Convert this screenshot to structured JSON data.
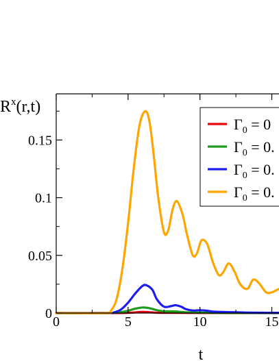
{
  "chart_data": {
    "type": "line",
    "ylabel_main": "R",
    "ylabel_sup": "x",
    "ylabel_rest": "(r,t)",
    "xlabel": "t",
    "xlim": [
      0,
      15.5
    ],
    "ylim": [
      0,
      0.19
    ],
    "xticks": [
      0,
      5,
      10,
      15
    ],
    "xtick_labels": [
      "0",
      "5",
      "10",
      "15"
    ],
    "yticks": [
      0,
      0.05,
      0.1,
      0.15
    ],
    "ytick_labels": [
      "0",
      "0.05",
      "0.1",
      "0.15"
    ],
    "legend_position": "top-right",
    "series": [
      {
        "name": "Γ0 = 0",
        "legend_symbol": "Γ",
        "legend_sub": "0",
        "legend_rest": " = 0",
        "color": "#e8000b",
        "x": [
          0,
          3,
          4,
          5,
          5.5,
          6,
          6.5,
          7,
          8,
          10,
          12,
          15.5
        ],
        "y": [
          0,
          0,
          0,
          0.0002,
          0.0006,
          0.001,
          0.0007,
          0.0003,
          0.0002,
          0.0001,
          0,
          0
        ]
      },
      {
        "name": "Γ0 = 0.",
        "legend_symbol": "Γ",
        "legend_sub": "0",
        "legend_rest": " = 0.",
        "color": "#1e9b1e",
        "x": [
          0,
          3.5,
          4.5,
          5,
          5.5,
          6,
          6.5,
          7,
          7.5,
          8,
          8.5,
          9,
          10,
          11,
          12,
          15.5
        ],
        "y": [
          0,
          0,
          0.0008,
          0.002,
          0.0038,
          0.0048,
          0.0042,
          0.0025,
          0.0015,
          0.0015,
          0.0012,
          0.0007,
          0.0004,
          0.0002,
          0.0001,
          0
        ]
      },
      {
        "name": "Γ0 = 0.",
        "legend_symbol": "Γ",
        "legend_sub": "0",
        "legend_rest": " = 0.",
        "color": "#1c1cf0",
        "x": [
          0,
          3.5,
          4,
          4.5,
          5,
          5.5,
          6,
          6.3,
          6.7,
          7,
          7.5,
          8,
          8.3,
          8.7,
          9,
          9.5,
          10,
          10.5,
          11,
          12,
          13,
          14,
          15.5
        ],
        "y": [
          0,
          0,
          0.0005,
          0.003,
          0.009,
          0.017,
          0.0235,
          0.024,
          0.02,
          0.012,
          0.0055,
          0.006,
          0.0068,
          0.0055,
          0.0035,
          0.0022,
          0.0025,
          0.002,
          0.0012,
          0.0008,
          0.0005,
          0.0003,
          0.0002
        ]
      },
      {
        "name": "Γ0 = 0.",
        "legend_symbol": "Γ",
        "legend_sub": "0",
        "legend_rest": " = 0.",
        "color": "#ffa500",
        "x": [
          0,
          3.5,
          3.8,
          4.2,
          4.6,
          5,
          5.4,
          5.8,
          6.2,
          6.5,
          6.8,
          7.1,
          7.5,
          7.8,
          8.1,
          8.4,
          8.8,
          9.1,
          9.5,
          9.8,
          10.1,
          10.5,
          10.9,
          11.3,
          11.6,
          12,
          12.4,
          12.8,
          13.3,
          13.7,
          14.1,
          14.6,
          15,
          15.5
        ],
        "y": [
          0,
          0,
          0.002,
          0.012,
          0.038,
          0.078,
          0.126,
          0.163,
          0.175,
          0.165,
          0.135,
          0.1,
          0.07,
          0.072,
          0.09,
          0.097,
          0.085,
          0.068,
          0.05,
          0.052,
          0.063,
          0.06,
          0.044,
          0.033,
          0.035,
          0.043,
          0.036,
          0.025,
          0.021,
          0.029,
          0.026,
          0.018,
          0.018,
          0.021
        ]
      }
    ]
  }
}
